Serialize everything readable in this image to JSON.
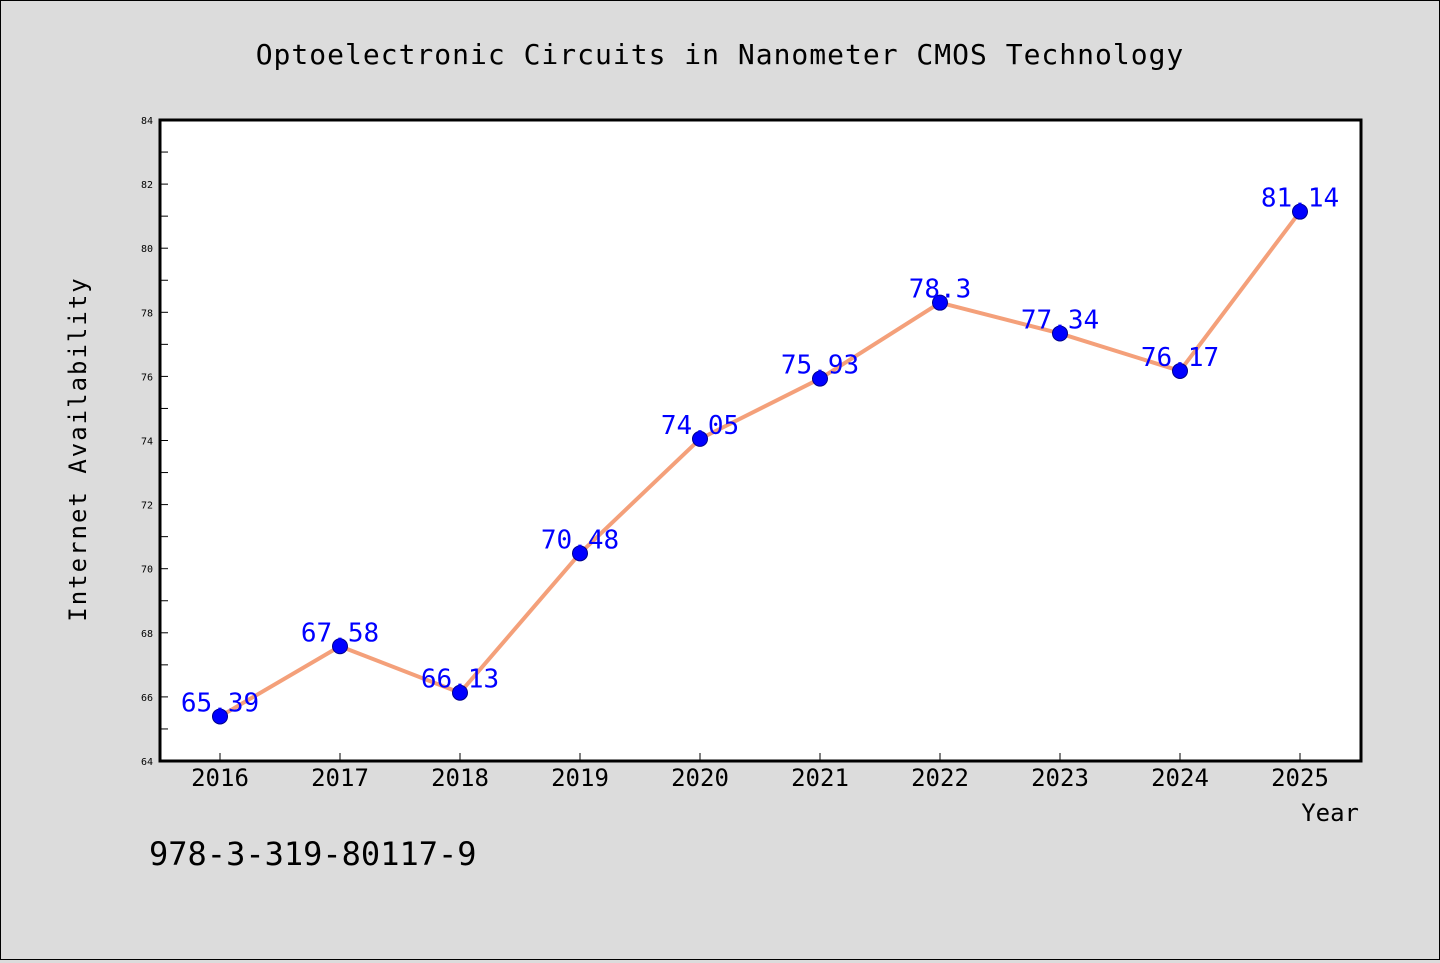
{
  "chart_data": {
    "type": "line",
    "title": "Optoelectronic Circuits in Nanometer CMOS Technology",
    "xlabel": "Year",
    "ylabel": "Internet Availability",
    "categories": [
      "2016",
      "2017",
      "2018",
      "2019",
      "2020",
      "2021",
      "2022",
      "2023",
      "2024",
      "2025"
    ],
    "series": [
      {
        "values": [
          65.39,
          67.58,
          66.13,
          70.48,
          74.05,
          75.93,
          78.3,
          77.34,
          76.17,
          81.14
        ]
      }
    ],
    "data_labels": [
      "65.39",
      "67.58",
      "66.13",
      "70.48",
      "74.05",
      "75.93",
      "78.3",
      "77.34",
      "76.17",
      "81.14"
    ],
    "ylim": [
      64,
      84
    ],
    "yticks": [
      64,
      66,
      68,
      70,
      72,
      74,
      76,
      78,
      80,
      82,
      84
    ],
    "grid": false,
    "legend": "none",
    "colors": {
      "line": "#f4a07a",
      "marker": "#0000ff",
      "label": "#0000ff",
      "plot_bg": "#ffffff",
      "page_bg": "#dcdcdc"
    }
  },
  "footer": {
    "isbn": "978-3-319-80117-9"
  }
}
